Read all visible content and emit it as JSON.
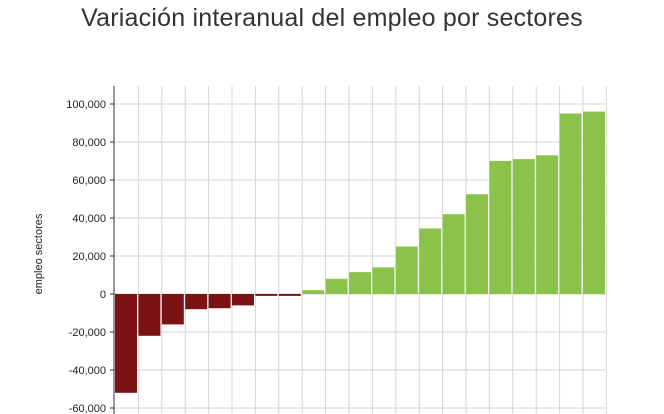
{
  "chart_data": {
    "type": "bar",
    "title": "Variación interanual del empleo por sectores",
    "ylabel": "empleo sectores",
    "xlabel": "",
    "ylim": [
      -60000,
      100000
    ],
    "yticks": [
      100000,
      80000,
      60000,
      40000,
      20000,
      0,
      -20000,
      -40000,
      -60000
    ],
    "ytick_labels": [
      "100,000",
      "80,000",
      "60,000",
      "40,000",
      "20,000",
      "0",
      "-20,000",
      "-40,000",
      "-60,000"
    ],
    "grid": true,
    "values": [
      -52000,
      -22000,
      -16000,
      -8000,
      -7500,
      -6000,
      -1000,
      -1000,
      2000,
      8000,
      11500,
      14000,
      25000,
      34500,
      42000,
      52500,
      70000,
      71000,
      73000,
      95000,
      96000
    ],
    "colors": {
      "negative": "#7b1214",
      "positive": "#8bc34a"
    }
  }
}
